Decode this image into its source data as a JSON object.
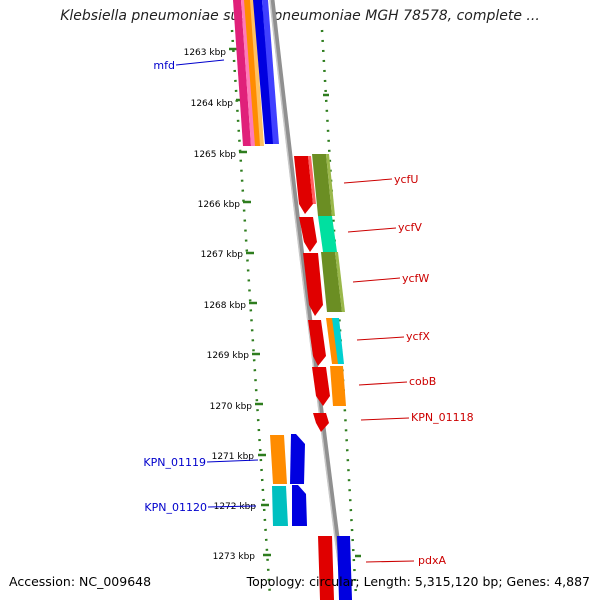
{
  "header": {
    "title": "Klebsiella pneumoniae subsp. pneumoniae MGH 78578, complete ..."
  },
  "footer": {
    "accession": "Accession: NC_009648",
    "summary": "Topology: circular; Length: 5,315,120 bp; Genes: 4,887"
  },
  "colors": {
    "backbone": "#808080",
    "ruler": "#2e7d1e",
    "left_label": "#0000cc",
    "right_label": "#cc0000"
  },
  "kbp_ticks": [
    "1263 kbp",
    "1264 kbp",
    "1265 kbp",
    "1266 kbp",
    "1267 kbp",
    "1268 kbp",
    "1269 kbp",
    "1270 kbp",
    "1271 kbp",
    "1272 kbp",
    "1273 kbp"
  ],
  "genes_left": [
    "mfd",
    "KPN_01119",
    "KPN_01120"
  ],
  "genes_right": [
    "ycfU",
    "ycfV",
    "ycfW",
    "ycfX",
    "cobB",
    "KPN_01118",
    "pdxA"
  ]
}
